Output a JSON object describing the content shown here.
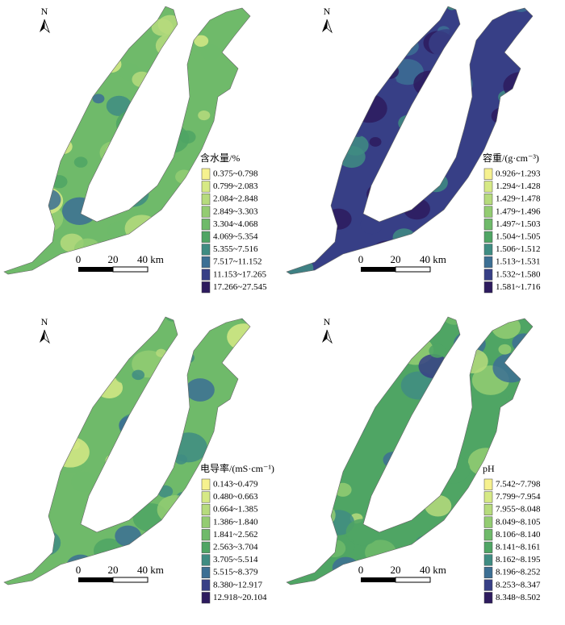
{
  "legend_colors": [
    "#f6f18f",
    "#d6e985",
    "#b6db7d",
    "#93cc72",
    "#6fba6a",
    "#4fa564",
    "#3f8c82",
    "#3c6f94",
    "#373f86",
    "#2d1b5e"
  ],
  "panels": [
    {
      "north": "N",
      "legend": {
        "title": "含水量/%",
        "items": [
          "0.375~0.798",
          "0.799~2.083",
          "2.084~2.848",
          "2.849~3.303",
          "3.304~4.068",
          "4.069~5.354",
          "5.355~7.516",
          "7.517~11.152",
          "11.153~17.265",
          "17.266~27.545"
        ]
      },
      "scale": [
        "0",
        "20",
        "40 km"
      ]
    },
    {
      "north": "N",
      "legend": {
        "title": "容重/(g·cm⁻³)",
        "items": [
          "0.926~1.293",
          "1.294~1.428",
          "1.429~1.478",
          "1.479~1.496",
          "1.497~1.503",
          "1.504~1.505",
          "1.506~1.512",
          "1.513~1.531",
          "1.532~1.580",
          "1.581~1.716"
        ]
      },
      "scale": [
        "0",
        "20",
        "40 km"
      ]
    },
    {
      "north": "N",
      "legend": {
        "title": "电导率/(mS·cm⁻¹)",
        "items": [
          "0.143~0.479",
          "0.480~0.663",
          "0.664~1.385",
          "1.386~1.840",
          "1.841~2.562",
          "2.563~3.704",
          "3.705~5.514",
          "5.515~8.379",
          "8.380~12.917",
          "12.918~20.104"
        ]
      },
      "scale": [
        "0",
        "20",
        "40 km"
      ]
    },
    {
      "north": "N",
      "legend": {
        "title": "pH",
        "items": [
          "7.542~7.798",
          "7.799~7.954",
          "7.955~8.048",
          "8.049~8.105",
          "8.106~8.140",
          "8.141~8.161",
          "8.162~8.195",
          "8.196~8.252",
          "8.253~8.347",
          "8.348~8.502"
        ]
      },
      "scale": [
        "0",
        "20",
        "40 km"
      ]
    }
  ]
}
